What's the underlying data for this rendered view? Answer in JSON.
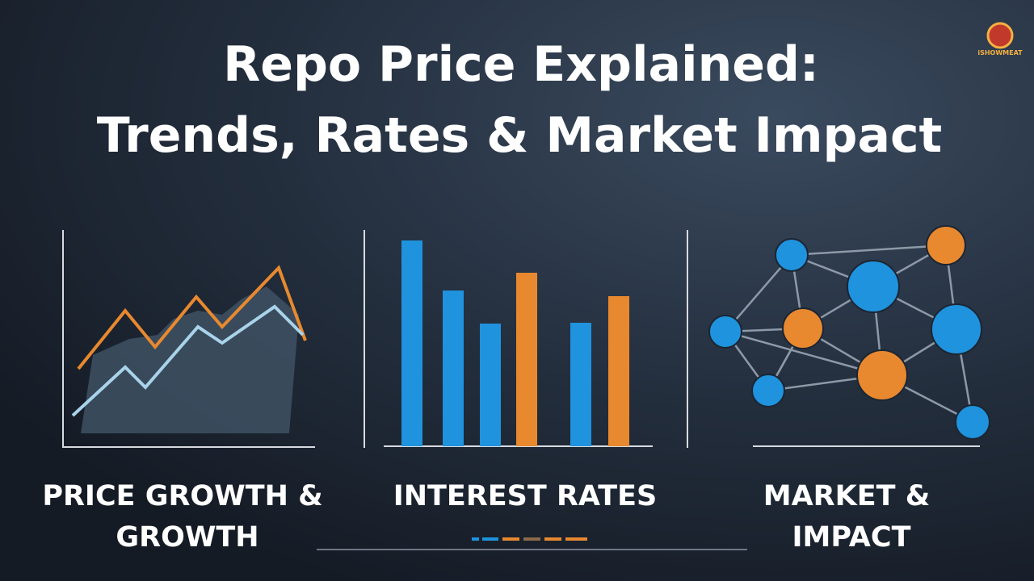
{
  "title": {
    "lines": [
      "Repo Price Explained:",
      "Trends, Rates & Market Impact"
    ]
  },
  "logo": {
    "text": "iSHOWMEAT"
  },
  "panels": [
    {
      "label": [
        "PRICE GROWTH &",
        "GROWTH"
      ]
    },
    {
      "label": [
        "INTEREST RATES"
      ]
    },
    {
      "label": [
        "MARKET &",
        "IMPACT"
      ]
    }
  ]
}
